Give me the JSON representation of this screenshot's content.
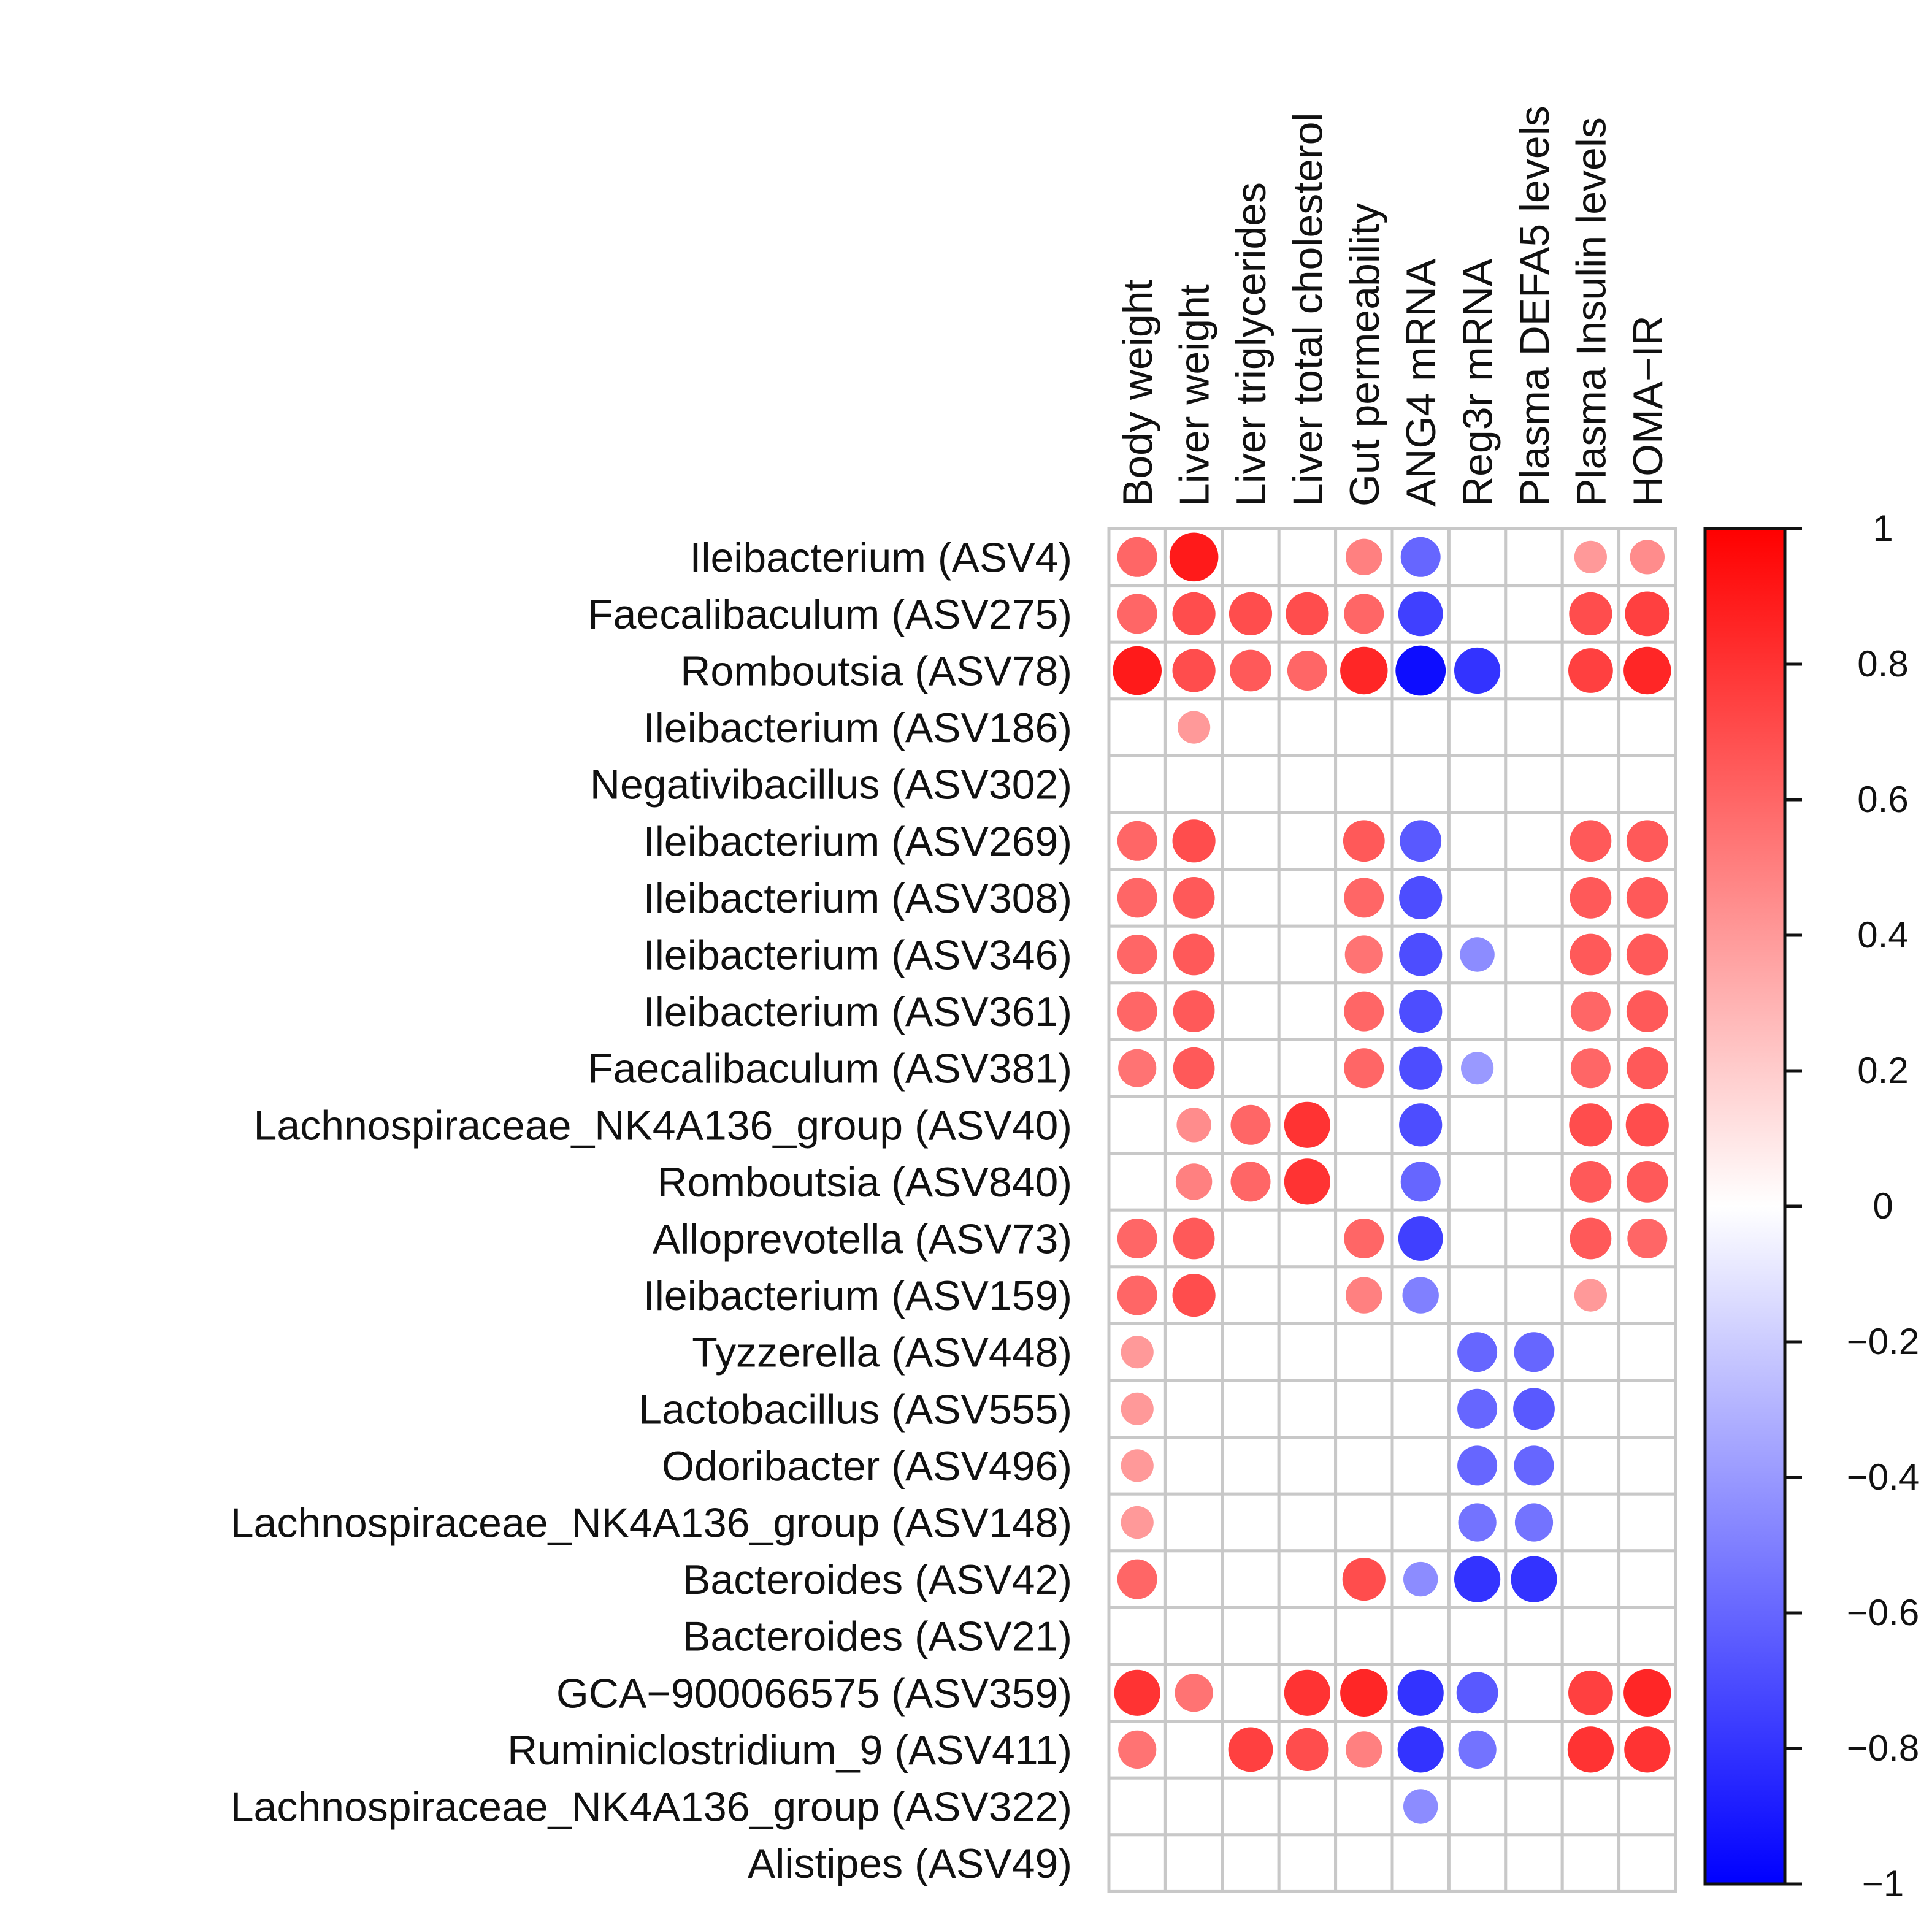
{
  "chart_data": {
    "type": "heatmap",
    "style": "correlation-circles",
    "title": "",
    "columns": [
      "Body weight",
      "Liver weight",
      "Liver triglycerides",
      "Liver total cholesterol",
      "Gut permeability",
      "ANG4 mRNA",
      "Reg3r mRNA",
      "Plasma DEFA5 levels",
      "Plasma Insulin levels",
      "HOMA−IR"
    ],
    "rows": [
      "Ileibacterium (ASV4)",
      "Faecalibaculum (ASV275)",
      "Romboutsia (ASV78)",
      "Ileibacterium (ASV186)",
      "Negativibacillus (ASV302)",
      "Ileibacterium (ASV269)",
      "Ileibacterium (ASV308)",
      "Ileibacterium (ASV346)",
      "Ileibacterium (ASV361)",
      "Faecalibaculum (ASV381)",
      "Lachnospiraceae_NK4A136_group (ASV40)",
      "Romboutsia (ASV840)",
      "Alloprevotella (ASV73)",
      "Ileibacterium (ASV159)",
      "Tyzzerella (ASV448)",
      "Lactobacillus (ASV555)",
      "Odoribacter (ASV496)",
      "Lachnospiraceae_NK4A136_group (ASV148)",
      "Bacteroides (ASV42)",
      "Bacteroides (ASV21)",
      "GCA−900066575 (ASV359)",
      "Ruminiclostridium_9 (ASV411)",
      "Lachnospiraceae_NK4A136_group (ASV322)",
      "Alistipes (ASV49)"
    ],
    "values": [
      [
        0.6,
        0.9,
        null,
        null,
        0.5,
        -0.6,
        null,
        null,
        0.4,
        0.45
      ],
      [
        0.6,
        0.7,
        0.7,
        0.7,
        0.6,
        -0.75,
        null,
        null,
        0.7,
        0.75
      ],
      [
        0.9,
        0.7,
        0.65,
        0.6,
        0.85,
        -0.95,
        -0.8,
        null,
        0.75,
        0.85
      ],
      [
        null,
        0.4,
        null,
        null,
        null,
        null,
        null,
        null,
        null,
        null
      ],
      [
        null,
        null,
        null,
        null,
        null,
        null,
        null,
        null,
        null,
        null
      ],
      [
        0.6,
        0.7,
        null,
        null,
        0.65,
        -0.65,
        null,
        null,
        0.65,
        0.65
      ],
      [
        0.6,
        0.65,
        null,
        null,
        0.6,
        -0.7,
        null,
        null,
        0.65,
        0.65
      ],
      [
        0.6,
        0.65,
        null,
        null,
        0.55,
        -0.7,
        -0.45,
        null,
        0.65,
        0.65
      ],
      [
        0.6,
        0.65,
        null,
        null,
        0.6,
        -0.7,
        null,
        null,
        0.6,
        0.65
      ],
      [
        0.55,
        0.65,
        null,
        null,
        0.6,
        -0.7,
        -0.4,
        null,
        0.6,
        0.65
      ],
      [
        null,
        0.45,
        0.6,
        0.8,
        null,
        -0.7,
        null,
        null,
        0.7,
        0.7
      ],
      [
        null,
        0.5,
        0.6,
        0.8,
        null,
        -0.6,
        null,
        null,
        0.65,
        0.65
      ],
      [
        0.6,
        0.65,
        null,
        null,
        0.6,
        -0.75,
        null,
        null,
        0.65,
        0.6
      ],
      [
        0.6,
        0.7,
        null,
        null,
        0.5,
        -0.5,
        null,
        null,
        0.4,
        null
      ],
      [
        0.4,
        null,
        null,
        null,
        null,
        null,
        -0.6,
        -0.6,
        null,
        null
      ],
      [
        0.4,
        null,
        null,
        null,
        null,
        null,
        -0.6,
        -0.65,
        null,
        null
      ],
      [
        0.4,
        null,
        null,
        null,
        null,
        null,
        -0.6,
        -0.6,
        null,
        null
      ],
      [
        0.4,
        null,
        null,
        null,
        null,
        null,
        -0.55,
        -0.55,
        null,
        null
      ],
      [
        0.6,
        null,
        null,
        null,
        0.7,
        -0.45,
        -0.8,
        -0.8,
        null,
        null
      ],
      [
        null,
        null,
        null,
        null,
        null,
        null,
        null,
        null,
        null,
        null
      ],
      [
        0.8,
        0.55,
        null,
        0.8,
        0.85,
        -0.8,
        -0.65,
        null,
        0.75,
        0.85
      ],
      [
        0.55,
        null,
        0.75,
        0.7,
        0.5,
        -0.8,
        -0.55,
        null,
        0.8,
        0.8
      ],
      [
        null,
        null,
        null,
        null,
        null,
        -0.45,
        null,
        null,
        null,
        null
      ],
      [
        null,
        null,
        null,
        null,
        null,
        null,
        null,
        null,
        null,
        null
      ]
    ],
    "colorbar": {
      "min": -1,
      "max": 1,
      "ticks": [
        1,
        0.8,
        0.6,
        0.4,
        0.2,
        0,
        -0.2,
        -0.4,
        -0.6,
        -0.8,
        -1
      ],
      "tick_labels": [
        "1",
        "0.8",
        "0.6",
        "0.4",
        "0.2",
        "0",
        "−0.2",
        "−0.4",
        "−0.6",
        "−0.8",
        "−1"
      ],
      "colors": {
        "low": "#0000ff",
        "mid": "#ffffff",
        "high": "#ff0000"
      },
      "placement": "right"
    },
    "grid_color": "#c8c8c8",
    "grid": true
  }
}
